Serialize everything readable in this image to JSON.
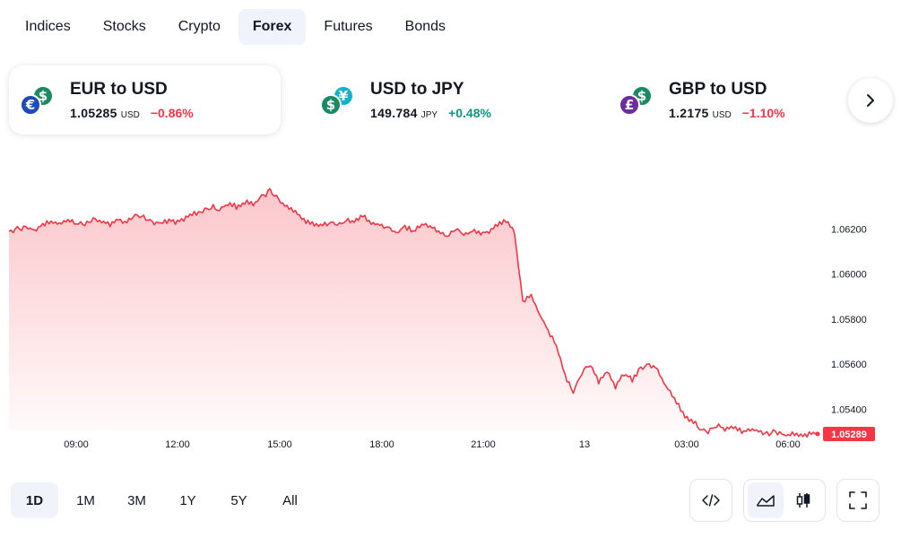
{
  "tabs": [
    {
      "label": "Indices",
      "active": false
    },
    {
      "label": "Stocks",
      "active": false
    },
    {
      "label": "Crypto",
      "active": false
    },
    {
      "label": "Forex",
      "active": true
    },
    {
      "label": "Futures",
      "active": false
    },
    {
      "label": "Bonds",
      "active": false
    }
  ],
  "cards": [
    {
      "title": "EUR to USD",
      "price": "1.05285",
      "unit": "USD",
      "change": "−0.86%",
      "direction": "down",
      "active": true,
      "icons": {
        "back": {
          "glyph": "$",
          "color": "#1b8a64"
        },
        "front": {
          "glyph": "€",
          "color": "#1e4bb8"
        }
      }
    },
    {
      "title": "USD to JPY",
      "price": "149.784",
      "unit": "JPY",
      "change": "+0.48%",
      "direction": "up",
      "active": false,
      "icons": {
        "back": {
          "glyph": "¥",
          "color": "#10b4c8"
        },
        "front": {
          "glyph": "$",
          "color": "#1b8a64"
        }
      }
    },
    {
      "title": "GBP to USD",
      "price": "1.2175",
      "unit": "USD",
      "change": "−1.10%",
      "direction": "down",
      "active": false,
      "icons": {
        "back": {
          "glyph": "$",
          "color": "#1b8a64"
        },
        "front": {
          "glyph": "£",
          "color": "#6d2ea0"
        }
      }
    }
  ],
  "colors": {
    "down": "#f23645",
    "up": "#089981",
    "line": "#f23645",
    "accent_bg": "#f0f3fa"
  },
  "chart_data": {
    "type": "area",
    "title": "",
    "x_ticks": [
      "09:00",
      "12:00",
      "15:00",
      "18:00",
      "21:00",
      "13",
      "03:00",
      "06:00"
    ],
    "y_ticks": [
      "1.06200",
      "1.06000",
      "1.05800",
      "1.05600",
      "1.05400"
    ],
    "ylim": [
      1.0525,
      1.065
    ],
    "last_value": "1.05289",
    "series": [
      {
        "values": [
          1.0619,
          1.062,
          1.0621,
          1.0619,
          1.0622,
          1.0623,
          1.0622,
          1.0624,
          1.0623,
          1.0622,
          1.0625,
          1.0623,
          1.0622,
          1.0624,
          1.0623,
          1.0626,
          1.0625,
          1.0623,
          1.0622,
          1.0624,
          1.0623,
          1.0625,
          1.0627,
          1.0628,
          1.063,
          1.0629,
          1.0631,
          1.063,
          1.0632,
          1.0631,
          1.0634,
          1.0637,
          1.0633,
          1.063,
          1.0628,
          1.0624,
          1.0622,
          1.0621,
          1.0623,
          1.0622,
          1.0624,
          1.0623,
          1.0626,
          1.0623,
          1.0622,
          1.062,
          1.0618,
          1.0621,
          1.0619,
          1.0622,
          1.0621,
          1.0619,
          1.0617,
          1.062,
          1.0618,
          1.0619,
          1.0618,
          1.0619,
          1.0622,
          1.0624,
          1.0618,
          1.0588,
          1.059,
          1.0582,
          1.0575,
          1.0568,
          1.0555,
          1.0548,
          1.0556,
          1.056,
          1.0552,
          1.0557,
          1.055,
          1.0556,
          1.0553,
          1.0558,
          1.056,
          1.0557,
          1.055,
          1.0545,
          1.0538,
          1.0535,
          1.0532,
          1.053,
          1.0533,
          1.0531,
          1.0532,
          1.053,
          1.0531,
          1.053,
          1.0529,
          1.053,
          1.0528,
          1.0529,
          1.0528,
          1.0529,
          1.0529
        ]
      }
    ]
  },
  "ranges": [
    {
      "label": "1D",
      "active": true
    },
    {
      "label": "1M",
      "active": false
    },
    {
      "label": "3M",
      "active": false
    },
    {
      "label": "1Y",
      "active": false
    },
    {
      "label": "5Y",
      "active": false
    },
    {
      "label": "All",
      "active": false
    }
  ],
  "tools": {
    "embed": "code-icon",
    "line_chart": "area-chart-icon",
    "candles": "candlestick-icon",
    "fullscreen": "fullscreen-icon"
  }
}
